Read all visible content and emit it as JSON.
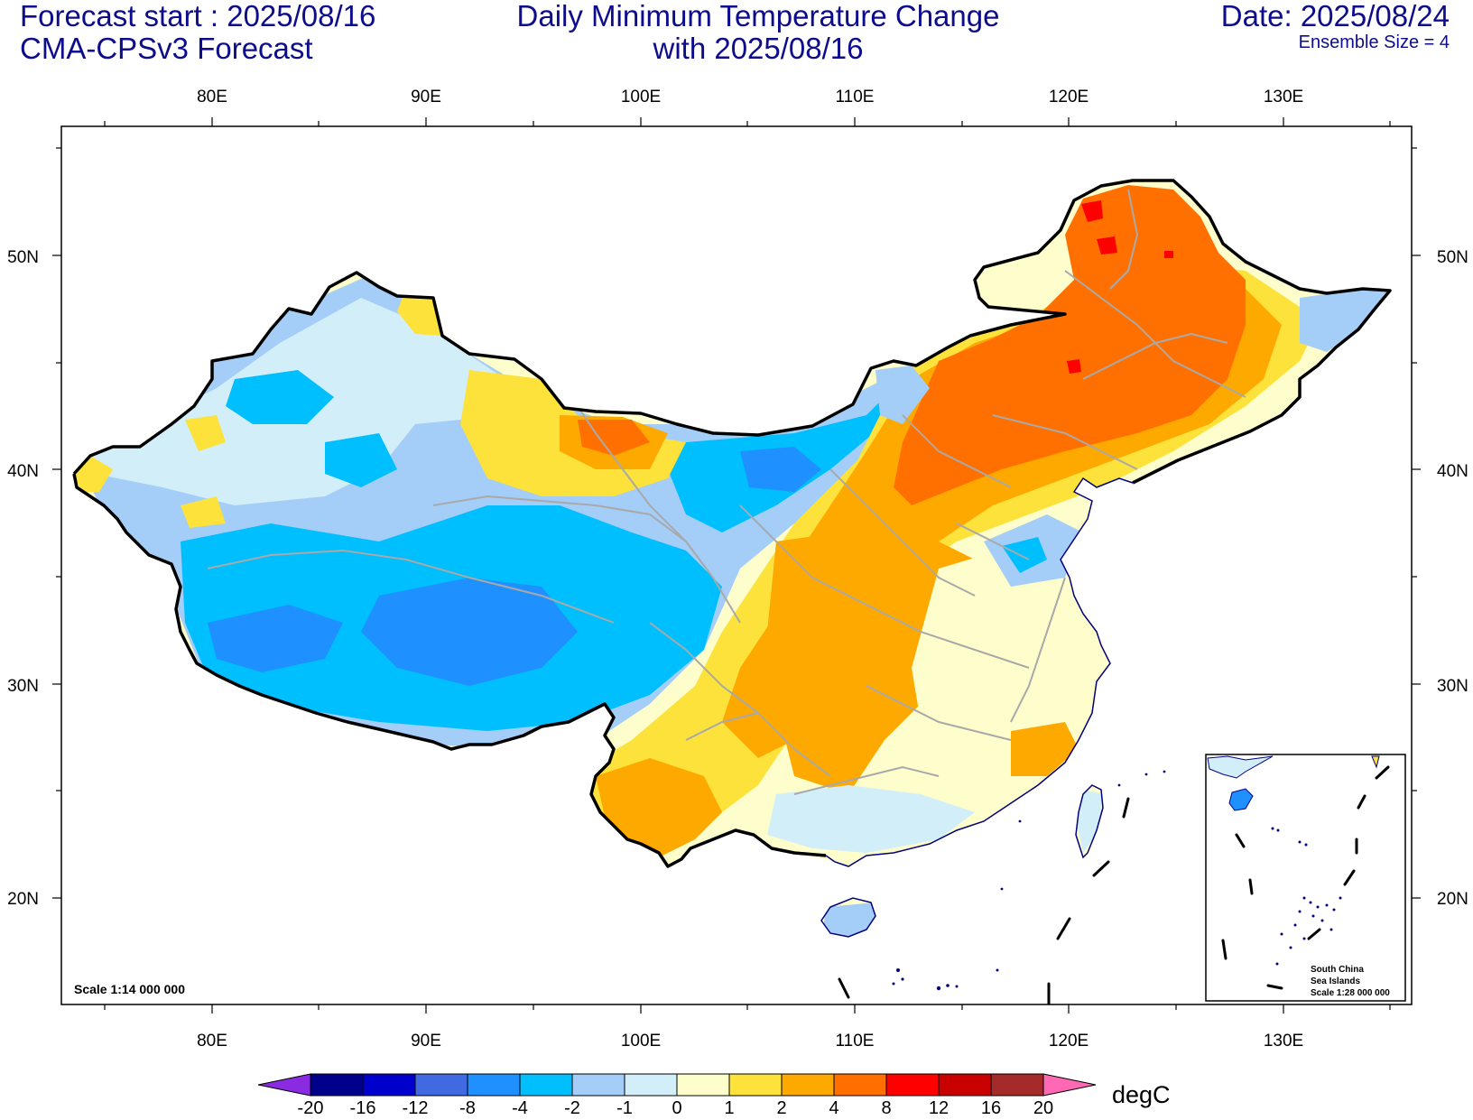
{
  "header": {
    "forecast_start": "Forecast start : 2025/08/16",
    "model": "CMA-CPSv3 Forecast",
    "title_line1": "Daily Minimum Temperature Change",
    "title_line2": "with 2025/08/16",
    "date": "Date: 2025/08/24",
    "ensemble": "Ensemble Size = 4"
  },
  "axes": {
    "lon_ticks": [
      "80E",
      "90E",
      "100E",
      "110E",
      "120E",
      "130E"
    ],
    "lat_ticks": [
      "50N",
      "40N",
      "30N",
      "20N"
    ]
  },
  "scale_label": "Scale 1:14 000 000",
  "inset": {
    "lines": [
      "South China",
      "Sea Islands",
      "Scale 1:28 000 000"
    ]
  },
  "colorbar": {
    "unit": "degC",
    "levels": [
      "-20",
      "-16",
      "-12",
      "-8",
      "-4",
      "-2",
      "-1",
      "0",
      "1",
      "2",
      "4",
      "8",
      "12",
      "16",
      "20"
    ],
    "colors": [
      "#8a2be2",
      "#00008b",
      "#0000cd",
      "#4169e1",
      "#1e90ff",
      "#00bfff",
      "#a4cdf7",
      "#d2eef9",
      "#fefecc",
      "#fde23b",
      "#fea900",
      "#ff7000",
      "#ff0000",
      "#c80000",
      "#a52a2a",
      "#ff69b4"
    ]
  },
  "field_colors": {
    "deep_blue": "#1e90ff",
    "blue": "#00bfff",
    "light_blue": "#a4cdf7",
    "pale_blue": "#d2eef9",
    "pale_yellow": "#fefecc",
    "yellow": "#fde23b",
    "orange": "#fea900",
    "dark_orange": "#ff7000",
    "red": "#ff0000"
  }
}
